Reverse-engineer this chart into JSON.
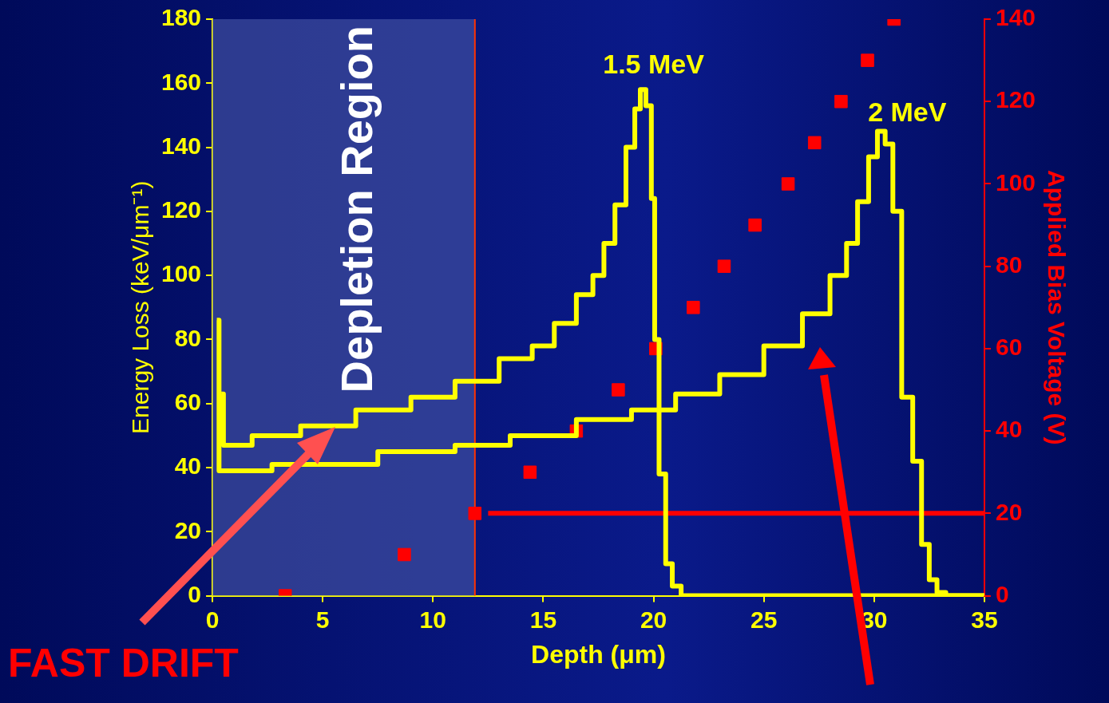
{
  "chart_data": {
    "type": "step",
    "xlabel": "Depth (μm)",
    "ylabel": "Energy Loss (keV/μm⁻¹)",
    "y2label": "Applied Bias Voltage (V)",
    "tick_labels": [
      "x",
      "y",
      "y2"
    ],
    "xlim": [
      0,
      35
    ],
    "xticks": [
      0,
      5,
      10,
      15,
      20,
      25,
      30,
      35
    ],
    "ylim": [
      0,
      180
    ],
    "yticks": [
      0,
      20,
      40,
      60,
      80,
      100,
      120,
      140,
      160,
      180
    ],
    "y2lim": [
      0,
      140
    ],
    "y2ticks": [
      0,
      20,
      40,
      60,
      80,
      100,
      120,
      140
    ],
    "grid": false,
    "legend": false,
    "marker": "none",
    "series": [
      {
        "color": "#ffff00",
        "x": [
          0.4,
          0.6,
          3,
          5,
          8,
          10,
          12,
          14,
          15,
          16,
          17,
          17.5,
          18,
          18.5,
          19,
          19.3,
          19.5,
          19.8,
          20,
          20.1,
          20.4,
          20.7,
          21,
          21.5,
          35
        ],
        "values": [
          63,
          47,
          50,
          53,
          58,
          62,
          67,
          74,
          78,
          85,
          94,
          100,
          110,
          122,
          140,
          152,
          158,
          153,
          124,
          80,
          38,
          10,
          3,
          0,
          0
        ]
      },
      {
        "color": "#ffff00",
        "x": [
          0.2,
          0.4,
          5,
          10,
          12,
          15,
          18,
          20,
          22,
          24,
          26,
          27.5,
          28.5,
          29,
          29.5,
          30,
          30.3,
          30.7,
          31,
          31.5,
          32,
          32.3,
          32.7,
          33,
          33.5,
          35
        ],
        "values": [
          86,
          39,
          41,
          45,
          47,
          50,
          55,
          58,
          63,
          69,
          78,
          88,
          100,
          110,
          123,
          137,
          145,
          141,
          120,
          62,
          42,
          16,
          5,
          1,
          0,
          0
        ]
      },
      {
        "type": "scatter",
        "axis": "y2",
        "marker": "square",
        "color": "#ff0000",
        "x": [
          3.3,
          8.7,
          11.9,
          14.4,
          16.5,
          18.4,
          20.1,
          21.8,
          23.2,
          24.6,
          26.1,
          27.3,
          28.5,
          29.7,
          30.9
        ],
        "values": [
          0,
          10,
          20,
          30,
          40,
          50,
          60,
          70,
          80,
          90,
          100,
          110,
          120,
          130,
          140
        ]
      },
      {
        "type": "line",
        "axis": "y2",
        "color": "#ff0000",
        "x": [
          12.5,
          35
        ],
        "values": [
          20,
          20
        ]
      }
    ],
    "ref_lines": [
      {
        "axis": "x",
        "value": 11.9,
        "color": "#ff3300"
      }
    ],
    "bands": [
      {
        "axis": "x",
        "from": 0,
        "to": 11.9,
        "label": "Depletion Region",
        "color": "#4a58a8"
      }
    ],
    "annotations": [
      "1.5 MeV",
      "2 MeV",
      "FAST DRIFT"
    ]
  }
}
